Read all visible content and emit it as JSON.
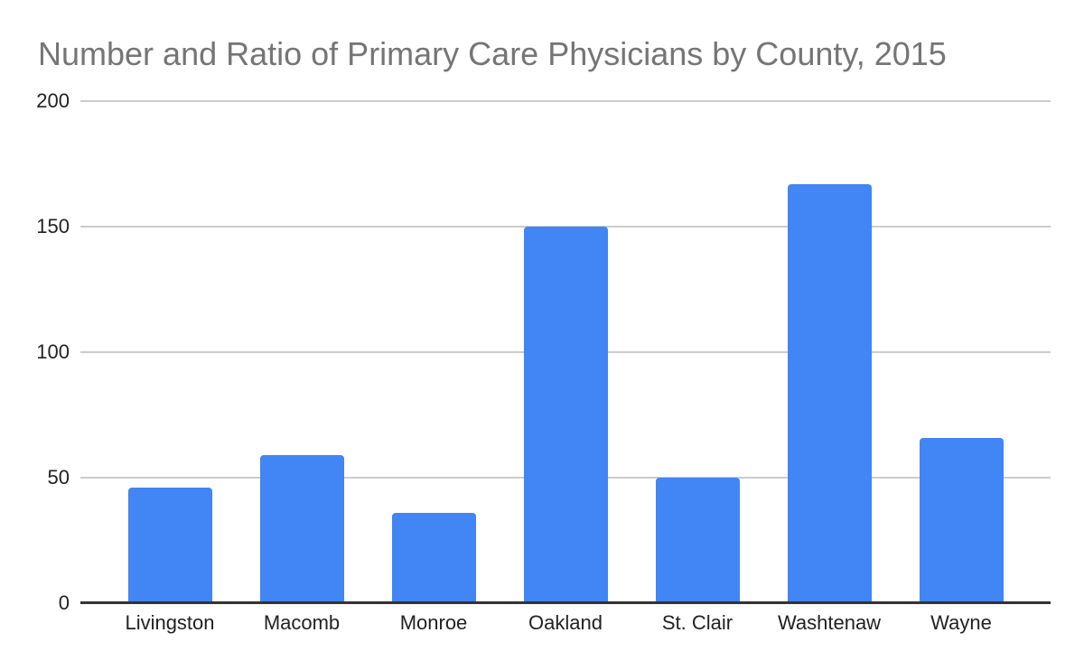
{
  "chart_data": {
    "type": "bar",
    "title": "Number and Ratio of Primary Care Physicians by County, 2015",
    "categories": [
      "Livingston",
      "Macomb",
      "Monroe",
      "Oakland",
      "St. Clair",
      "Washtenaw",
      "Wayne"
    ],
    "values": [
      46,
      59,
      36,
      150,
      50,
      167,
      66
    ],
    "xlabel": "",
    "ylabel": "",
    "ylim": [
      0,
      200
    ],
    "yticks": [
      0,
      50,
      100,
      150,
      200
    ],
    "grid": true,
    "legend": "none",
    "colors": {
      "bar": "#4285f4",
      "title_text": "#757575",
      "axis_text": "#222222",
      "gridline": "#cccccc",
      "axis_line": "#333333",
      "background": "#ffffff"
    }
  }
}
